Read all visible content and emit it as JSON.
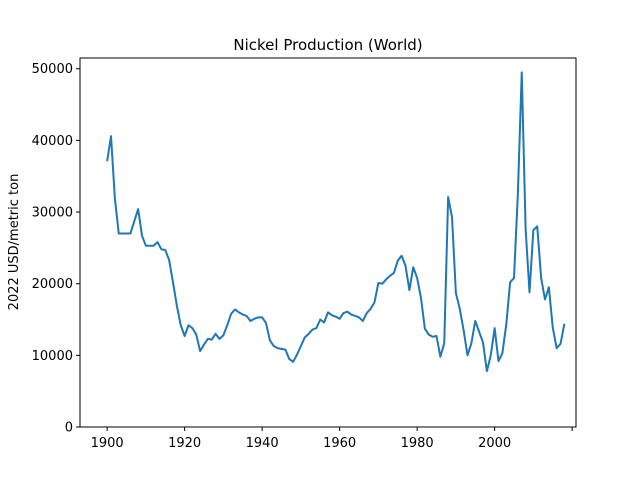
{
  "chart_data": {
    "type": "line",
    "title": "Nickel Production (World)",
    "xlabel": "",
    "ylabel": "2022 USD/metric ton",
    "xlim": [
      1893,
      2021
    ],
    "ylim": [
      0,
      51500
    ],
    "xticks": [
      1900,
      1920,
      1940,
      1960,
      1980,
      2000,
      2020
    ],
    "xtick_labels": [
      "1900",
      "1920",
      "1940",
      "1960",
      "1980",
      "2000",
      ""
    ],
    "yticks": [
      0,
      10000,
      20000,
      30000,
      40000,
      50000
    ],
    "ytick_labels": [
      "0",
      "10000",
      "20000",
      "30000",
      "40000",
      "50000"
    ],
    "grid": false,
    "series": [
      {
        "color": "#1f77b4",
        "x": [
          1900,
          1901,
          1902,
          1903,
          1904,
          1905,
          1906,
          1907,
          1908,
          1909,
          1910,
          1911,
          1912,
          1913,
          1914,
          1915,
          1916,
          1917,
          1918,
          1919,
          1920,
          1921,
          1922,
          1923,
          1924,
          1925,
          1926,
          1927,
          1928,
          1929,
          1930,
          1931,
          1932,
          1933,
          1934,
          1935,
          1936,
          1937,
          1938,
          1939,
          1940,
          1941,
          1942,
          1943,
          1944,
          1945,
          1946,
          1947,
          1948,
          1949,
          1950,
          1951,
          1952,
          1953,
          1954,
          1955,
          1956,
          1957,
          1958,
          1959,
          1960,
          1961,
          1962,
          1963,
          1964,
          1965,
          1966,
          1967,
          1968,
          1969,
          1970,
          1971,
          1972,
          1973,
          1974,
          1975,
          1976,
          1977,
          1978,
          1979,
          1980,
          1981,
          1982,
          1983,
          1984,
          1985,
          1986,
          1987,
          1988,
          1989,
          1990,
          1991,
          1992,
          1993,
          1994,
          1995,
          1996,
          1997,
          1998,
          1999,
          2000,
          2001,
          2002,
          2003,
          2004,
          2005,
          2006,
          2007,
          2008,
          2009,
          2010,
          2011,
          2012,
          2013,
          2014,
          2015,
          2016,
          2017,
          2018
        ],
        "y": [
          37100,
          40600,
          31900,
          27000,
          27000,
          27000,
          27000,
          28700,
          30400,
          26700,
          25300,
          25300,
          25300,
          25800,
          24800,
          24700,
          23300,
          20200,
          16900,
          14200,
          12700,
          14200,
          13800,
          12900,
          10600,
          11500,
          12300,
          12200,
          13000,
          12300,
          12800,
          14200,
          15800,
          16400,
          16000,
          15700,
          15500,
          14800,
          15100,
          15300,
          15300,
          14500,
          12100,
          11300,
          11000,
          10900,
          10800,
          9500,
          9100,
          10100,
          11300,
          12500,
          13000,
          13600,
          13800,
          15000,
          14600,
          16000,
          15600,
          15400,
          15100,
          15900,
          16100,
          15700,
          15500,
          15300,
          14800,
          15900,
          16500,
          17400,
          20100,
          20000,
          20600,
          21100,
          21500,
          23200,
          23900,
          22500,
          19100,
          22300,
          20800,
          18000,
          13700,
          12900,
          12600,
          12700,
          9800,
          11700,
          32100,
          29300,
          18700,
          16500,
          13500,
          10000,
          11700,
          14800,
          13300,
          11800,
          7800,
          10000,
          13800,
          9200,
          10300,
          14300,
          20200,
          20800,
          32600,
          49500,
          27600,
          18800,
          27500,
          28000,
          20800,
          17800,
          19500,
          13900,
          11000,
          11600,
          14400
        ]
      }
    ]
  }
}
